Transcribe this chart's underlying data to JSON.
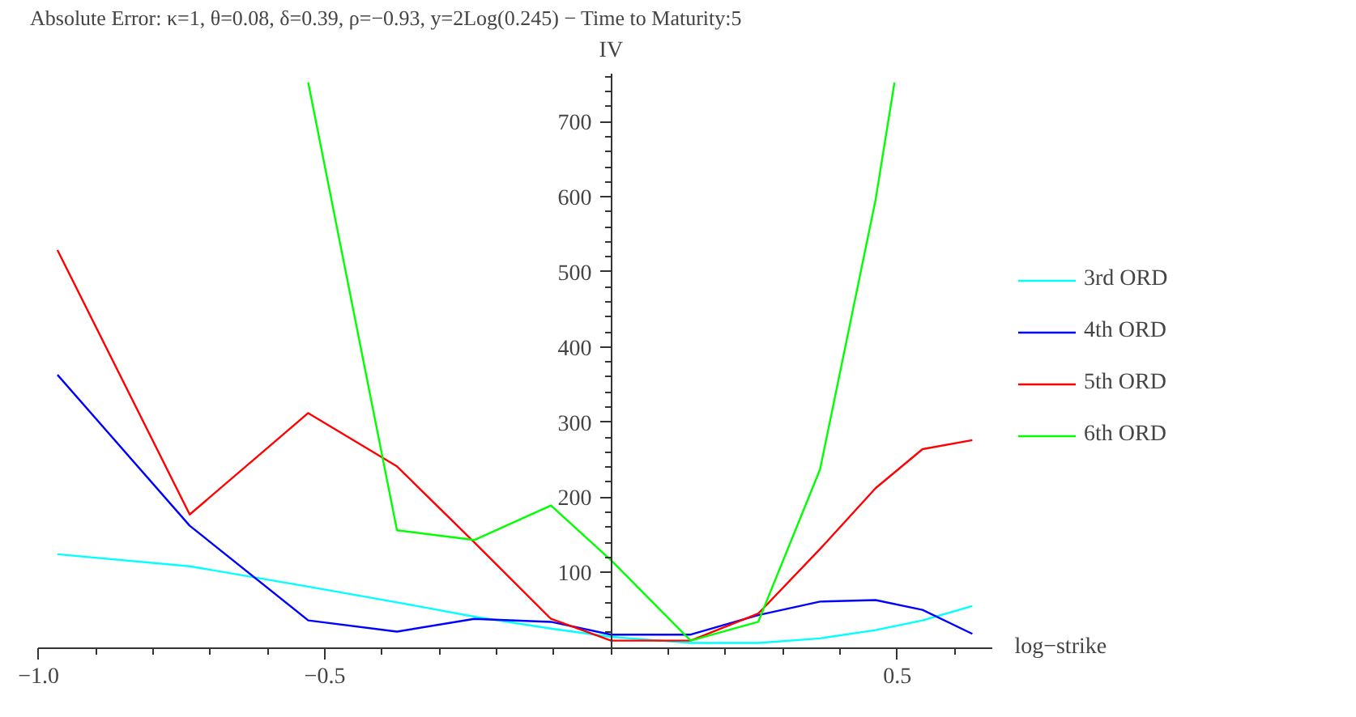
{
  "chart_data": {
    "type": "line",
    "title": "Absolute Error: κ=1, θ=0.08, δ=0.39, ρ=−0.93, y=2Log(0.245) − Time to Maturity:5",
    "xlabel": "log−strike",
    "ylabel": "IV",
    "x": [
      -0.967,
      -0.736,
      -0.529,
      -0.374,
      -0.239,
      -0.105,
      0.0,
      0.139,
      0.257,
      0.365,
      0.462,
      0.544,
      0.631
    ],
    "series": [
      {
        "name": "3rd ORD",
        "color": "#00ffff",
        "values": [
          124,
          108,
          81,
          60,
          41,
          25,
          14,
          6,
          6,
          12,
          23,
          36,
          55
        ]
      },
      {
        "name": "4th ORD",
        "color": "#0000ff",
        "values": [
          363,
          162,
          36,
          21,
          38,
          34,
          17,
          17,
          43,
          61,
          63,
          50,
          18
        ]
      },
      {
        "name": "5th ORD",
        "color": "#ff0000",
        "values": [
          529,
          177,
          312,
          241,
          140,
          38,
          9,
          9,
          45,
          131,
          212,
          264,
          276
        ]
      },
      {
        "name": "6th ORD",
        "color": "#00ff00",
        "x": [
          -0.529,
          -0.374,
          -0.239,
          -0.105,
          0.0,
          0.139,
          0.257,
          0.365,
          0.462,
          0.495
        ],
        "values": [
          752,
          156,
          143,
          189,
          116,
          9,
          34,
          237,
          596,
          752
        ]
      }
    ],
    "xlim": [
      -1.0,
      0.665
    ],
    "ylim": [
      0,
      765
    ],
    "xticks": [
      {
        "value": -1.0,
        "label": "−1.0"
      },
      {
        "value": -0.5,
        "label": "−0.5"
      },
      0.5
    ],
    "yticks": [
      100,
      200,
      300,
      400,
      500,
      600,
      700
    ],
    "legend": "right"
  }
}
